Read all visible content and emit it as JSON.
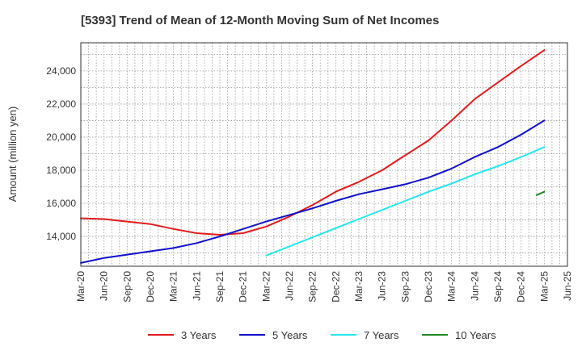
{
  "chart_data": {
    "type": "line",
    "title": "[5393]  Trend of Mean of 12-Month Moving Sum of Net Incomes",
    "ylabel": "Amount (million yen)",
    "xlabel": "",
    "x_ticks": [
      "Mar-20",
      "Jun-20",
      "Sep-20",
      "Dec-20",
      "Mar-21",
      "Jun-21",
      "Sep-21",
      "Dec-21",
      "Mar-22",
      "Jun-22",
      "Sep-22",
      "Dec-22",
      "Mar-23",
      "Jun-23",
      "Sep-23",
      "Dec-23",
      "Mar-24",
      "Jun-24",
      "Sep-24",
      "Dec-24",
      "Mar-25",
      "Jun-25"
    ],
    "y_ticks": [
      "14,000",
      "16,000",
      "18,000",
      "20,000",
      "22,000",
      "24,000"
    ],
    "y_tick_values": [
      14000,
      16000,
      18000,
      20000,
      22000,
      24000
    ],
    "ylim": [
      12200,
      25700
    ],
    "grid": true,
    "legend_position": "bottom",
    "series": [
      {
        "name": "3 Years",
        "color": "#e41a1c",
        "points": [
          [
            "Mar-20",
            15100
          ],
          [
            "Jun-20",
            15050
          ],
          [
            "Sep-20",
            14900
          ],
          [
            "Dec-20",
            14750
          ],
          [
            "Mar-21",
            14450
          ],
          [
            "Jun-21",
            14200
          ],
          [
            "Sep-21",
            14100
          ],
          [
            "Dec-21",
            14200
          ],
          [
            "Mar-22",
            14600
          ],
          [
            "Jun-22",
            15200
          ],
          [
            "Sep-22",
            15900
          ],
          [
            "Dec-22",
            16700
          ],
          [
            "Mar-23",
            17300
          ],
          [
            "Jun-23",
            18000
          ],
          [
            "Sep-23",
            18900
          ],
          [
            "Dec-23",
            19800
          ],
          [
            "Mar-24",
            21000
          ],
          [
            "Jun-24",
            22300
          ],
          [
            "Sep-24",
            23300
          ],
          [
            "Dec-24",
            24300
          ],
          [
            "Mar-25",
            25250
          ]
        ]
      },
      {
        "name": "5 Years",
        "color": "#1010cc",
        "points": [
          [
            "Mar-20",
            12400
          ],
          [
            "Jun-20",
            12700
          ],
          [
            "Sep-20",
            12900
          ],
          [
            "Dec-20",
            13100
          ],
          [
            "Mar-21",
            13300
          ],
          [
            "Jun-21",
            13600
          ],
          [
            "Sep-21",
            14000
          ],
          [
            "Dec-21",
            14450
          ],
          [
            "Mar-22",
            14900
          ],
          [
            "Jun-22",
            15300
          ],
          [
            "Sep-22",
            15700
          ],
          [
            "Dec-22",
            16150
          ],
          [
            "Mar-23",
            16550
          ],
          [
            "Jun-23",
            16850
          ],
          [
            "Sep-23",
            17150
          ],
          [
            "Dec-23",
            17550
          ],
          [
            "Mar-24",
            18100
          ],
          [
            "Jun-24",
            18800
          ],
          [
            "Sep-24",
            19400
          ],
          [
            "Dec-24",
            20150
          ],
          [
            "Mar-25",
            21000
          ]
        ]
      },
      {
        "name": "7 Years",
        "color": "#22e8f0",
        "points": [
          [
            "Mar-22",
            12850
          ],
          [
            "Jun-22",
            13400
          ],
          [
            "Sep-22",
            13950
          ],
          [
            "Dec-22",
            14500
          ],
          [
            "Mar-23",
            15050
          ],
          [
            "Jun-23",
            15600
          ],
          [
            "Sep-23",
            16150
          ],
          [
            "Dec-23",
            16700
          ],
          [
            "Mar-24",
            17200
          ],
          [
            "Jun-24",
            17750
          ],
          [
            "Sep-24",
            18250
          ],
          [
            "Dec-24",
            18800
          ],
          [
            "Mar-25",
            19400
          ]
        ]
      },
      {
        "name": "10 Years",
        "color": "#228b22",
        "points": [
          [
            "Feb-25",
            16500
          ],
          [
            "Mar-25",
            16700
          ]
        ]
      }
    ]
  }
}
